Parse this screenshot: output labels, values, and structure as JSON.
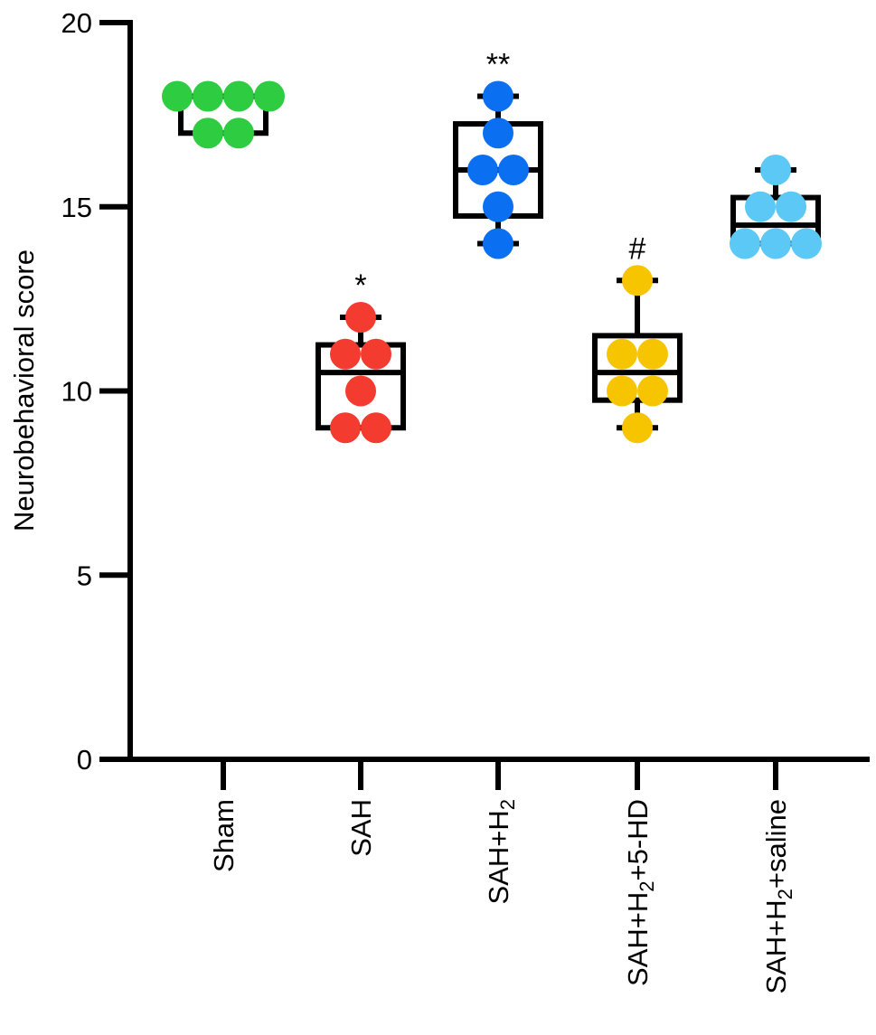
{
  "chart_data": {
    "type": "box",
    "ylabel": "Neurobehavioral score",
    "xlabel": "",
    "ylim": [
      0,
      20
    ],
    "yticks": [
      0,
      5,
      10,
      15,
      20
    ],
    "grid": false,
    "categories": [
      {
        "main": "Sham",
        "parts": [
          {
            "t": "Sham"
          }
        ]
      },
      {
        "main": "SAH",
        "parts": [
          {
            "t": "SAH"
          }
        ]
      },
      {
        "main": "SAH+H2",
        "parts": [
          {
            "t": "SAH+H"
          },
          {
            "t": "2",
            "sub": true
          }
        ]
      },
      {
        "main": "SAH+H2+5-HD",
        "parts": [
          {
            "t": "SAH+H"
          },
          {
            "t": "2",
            "sub": true
          },
          {
            "t": "+5-HD"
          }
        ]
      },
      {
        "main": "SAH+H2+saline",
        "parts": [
          {
            "t": "SAH+H"
          },
          {
            "t": "2",
            "sub": true
          },
          {
            "t": "+saline"
          }
        ]
      }
    ],
    "series": [
      {
        "category": "Sham",
        "color": "#2ecc40",
        "points": [
          18,
          18,
          18,
          18,
          17,
          17
        ],
        "box": {
          "min": 17,
          "q1": 17,
          "median": 18,
          "q3": 18,
          "max": 18
        },
        "annotation": ""
      },
      {
        "category": "SAH",
        "color": "#f43b2f",
        "points": [
          12,
          11,
          11,
          10,
          9,
          9
        ],
        "box": {
          "min": 9,
          "q1": 9,
          "median": 10.5,
          "q3": 11.25,
          "max": 12
        },
        "annotation": "*"
      },
      {
        "category": "SAH+H2",
        "color": "#0a6ff0",
        "points": [
          18,
          17,
          16,
          16,
          15,
          14
        ],
        "box": {
          "min": 14,
          "q1": 14.75,
          "median": 16,
          "q3": 17.25,
          "max": 18
        },
        "annotation": "**"
      },
      {
        "category": "SAH+H2+5-HD",
        "color": "#f7c400",
        "points": [
          13,
          11,
          11,
          10,
          10,
          9
        ],
        "box": {
          "min": 9,
          "q1": 9.75,
          "median": 10.5,
          "q3": 11.5,
          "max": 13
        },
        "annotation": "#"
      },
      {
        "category": "SAH+H2+saline",
        "color": "#5bc8f5",
        "points": [
          16,
          15,
          15,
          14,
          14,
          14
        ],
        "box": {
          "min": 14,
          "q1": 14,
          "median": 14.5,
          "q3": 15.25,
          "max": 16
        },
        "annotation": ""
      }
    ]
  }
}
